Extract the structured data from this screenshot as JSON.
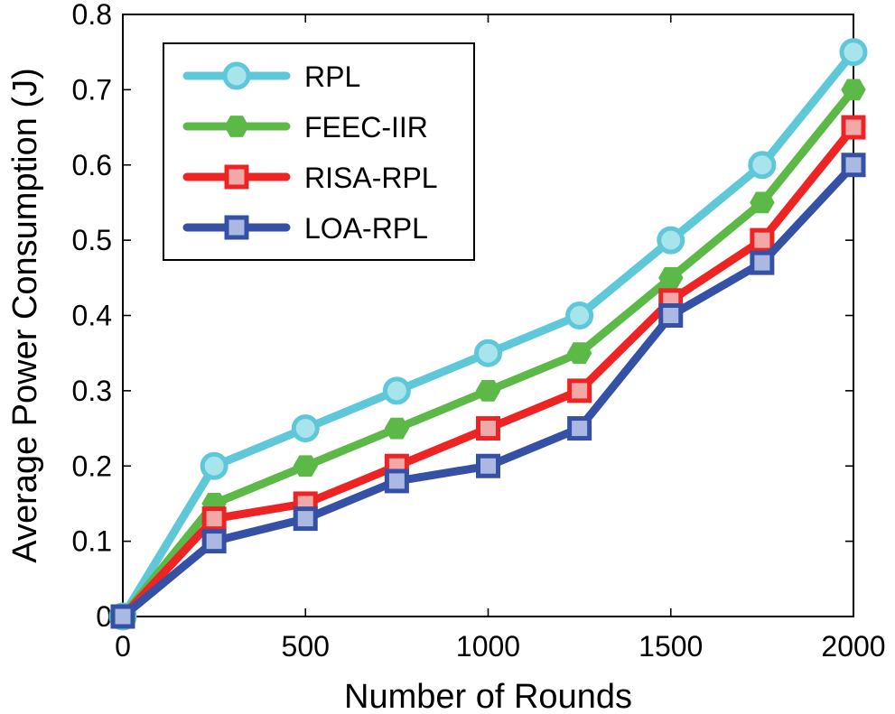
{
  "chart_data": {
    "type": "line",
    "title": "",
    "xlabel": "Number of Rounds",
    "ylabel": "Average Power Consumption (J)",
    "xlim": [
      0,
      2000
    ],
    "ylim": [
      0,
      0.8
    ],
    "xticks": [
      0,
      500,
      1000,
      1500,
      2000
    ],
    "xtick_labels": [
      "0",
      "500",
      "1000",
      "1500",
      "2000"
    ],
    "yticks": [
      0,
      0.1,
      0.2,
      0.3,
      0.4,
      0.5,
      0.6,
      0.7,
      0.8
    ],
    "ytick_labels": [
      "0",
      "0.1",
      "0.2",
      "0.3",
      "0.4",
      "0.5",
      "0.6",
      "0.7",
      "0.8"
    ],
    "grid": false,
    "legend_position": "top-left",
    "x": [
      0,
      250,
      500,
      750,
      1000,
      1250,
      1500,
      1750,
      2000
    ],
    "series": [
      {
        "name": "RPL",
        "marker": "circle",
        "color": "#5ec8d8",
        "marker_fill": "#a8e4ec",
        "values": [
          0,
          0.2,
          0.25,
          0.3,
          0.35,
          0.4,
          0.5,
          0.6,
          0.75
        ]
      },
      {
        "name": "FEEC-IIR",
        "marker": "hexagon",
        "color": "#5cb947",
        "marker_fill": "#5cb947",
        "values": [
          0,
          0.15,
          0.2,
          0.25,
          0.3,
          0.35,
          0.45,
          0.55,
          0.7
        ]
      },
      {
        "name": "RISA-RPL",
        "marker": "square",
        "color": "#ee2424",
        "marker_fill": "#f3a8a8",
        "values": [
          0,
          0.13,
          0.15,
          0.2,
          0.25,
          0.3,
          0.42,
          0.5,
          0.65
        ]
      },
      {
        "name": "LOA-RPL",
        "marker": "square",
        "color": "#3551a6",
        "marker_fill": "#aab8e2",
        "values": [
          0,
          0.1,
          0.13,
          0.18,
          0.2,
          0.25,
          0.4,
          0.47,
          0.6
        ]
      }
    ]
  }
}
